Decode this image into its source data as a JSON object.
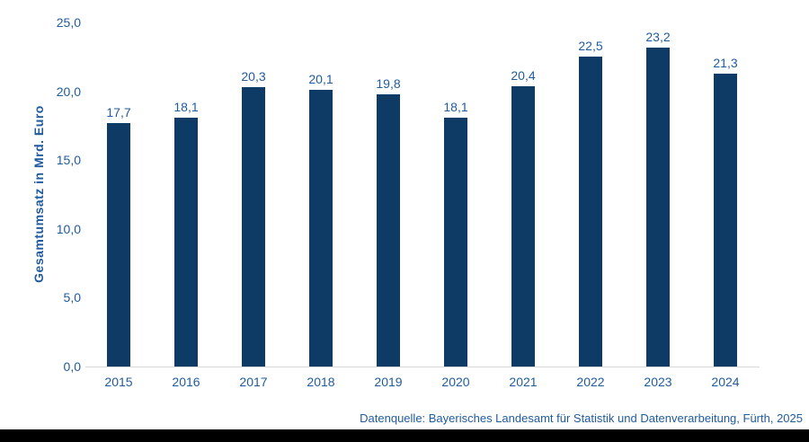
{
  "chart_data": {
    "type": "bar",
    "title": "",
    "xlabel": "",
    "ylabel": "Gesamtumsatz in Mrd. Euro",
    "categories": [
      "2015",
      "2016",
      "2017",
      "2018",
      "2019",
      "2020",
      "2021",
      "2022",
      "2023",
      "2024"
    ],
    "values": [
      17.7,
      18.1,
      20.3,
      20.1,
      19.8,
      18.1,
      20.4,
      22.5,
      23.2,
      21.3
    ],
    "value_labels": [
      "17,7",
      "18,1",
      "20,3",
      "20,1",
      "19,8",
      "18,1",
      "20,4",
      "22,5",
      "23,2",
      "21,3"
    ],
    "ylim": [
      0,
      25
    ],
    "yticks": [
      {
        "value": 0,
        "label": "0,0"
      },
      {
        "value": 5,
        "label": "5,0"
      },
      {
        "value": 10,
        "label": "10,0"
      },
      {
        "value": 15,
        "label": "15,0"
      },
      {
        "value": 20,
        "label": "20,0"
      },
      {
        "value": 25,
        "label": "25,0"
      }
    ],
    "grid": false,
    "legend": false,
    "colors": {
      "bar": "#0d3b66",
      "text": "#1f5b9e",
      "axis_line": "#d9d9d9",
      "footer_bar": "#000000"
    }
  },
  "footer": {
    "source_text": "Datenquelle: Bayerisches Landesamt für Statistik und Datenverarbeitung, Fürth, 2025"
  }
}
